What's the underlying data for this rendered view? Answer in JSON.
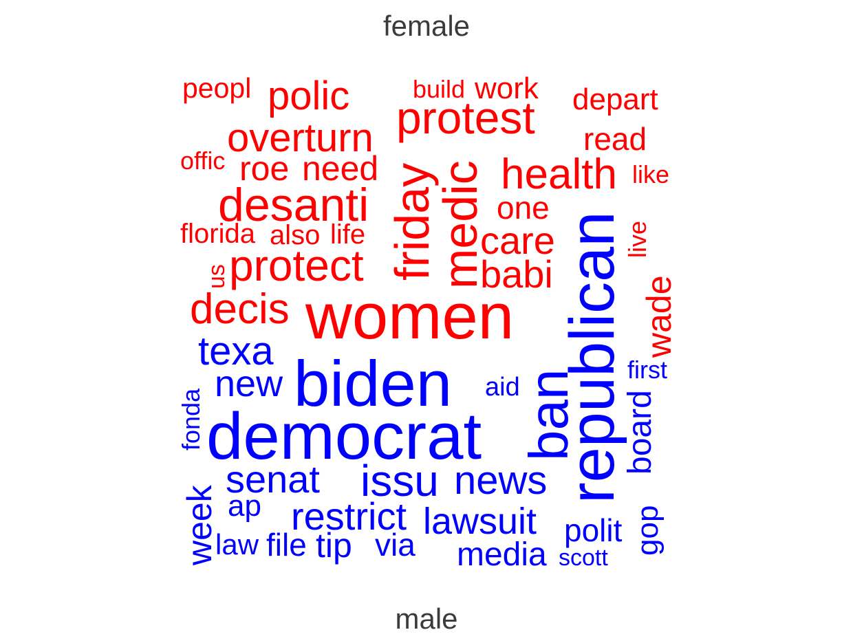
{
  "colors": {
    "female": "#ff0000",
    "male": "#0000ff",
    "label": "#3b3b3b",
    "background": "#ffffff"
  },
  "chart_data": {
    "type": "wordcloud",
    "groups": [
      {
        "name": "female",
        "label": "female",
        "words": [
          "peopl",
          "polic",
          "build",
          "work",
          "depart",
          "protest",
          "overturn",
          "read",
          "offic",
          "roe",
          "need",
          "health",
          "like",
          "friday",
          "medic",
          "desanti",
          "one",
          "florida",
          "also",
          "life",
          "care",
          "live",
          "protect",
          "us",
          "babi",
          "decis",
          "women",
          "wade"
        ]
      },
      {
        "name": "male",
        "label": "male",
        "words": [
          "republican",
          "texa",
          "biden",
          "first",
          "new",
          "aid",
          "fonda",
          "democrat",
          "ban",
          "board",
          "senat",
          "issu",
          "news",
          "week",
          "ap",
          "restrict",
          "lawsuit",
          "gop",
          "polit",
          "law",
          "file",
          "tip",
          "via",
          "media",
          "scott"
        ]
      }
    ]
  }
}
